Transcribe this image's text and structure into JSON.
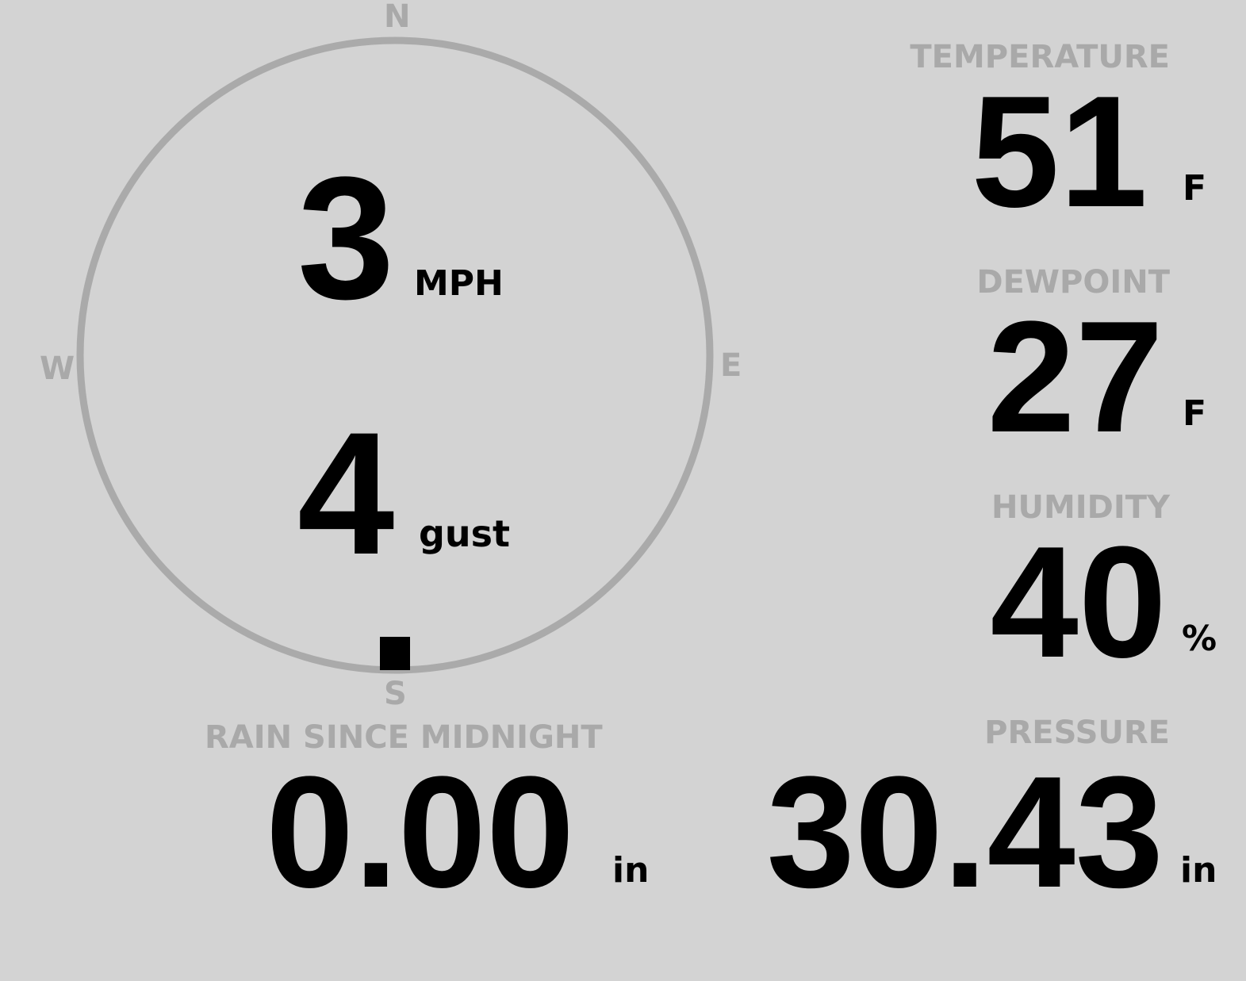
{
  "compass": {
    "north": "N",
    "south": "S",
    "east": "E",
    "west": "W",
    "wind_direction_deg": 180,
    "ring_color": "#aaaaaa"
  },
  "wind": {
    "speed": "3",
    "speed_unit": "MPH",
    "gust": "4",
    "gust_unit": "gust"
  },
  "temperature": {
    "label": "TEMPERATURE",
    "value": "51",
    "unit": "F"
  },
  "dewpoint": {
    "label": "DEWPOINT",
    "value": "27",
    "unit": "F"
  },
  "humidity": {
    "label": "HUMIDITY",
    "value": "40",
    "unit": "%"
  },
  "rain": {
    "label": "RAIN SINCE MIDNIGHT",
    "value": "0.00",
    "unit": "in"
  },
  "pressure": {
    "label": "PRESSURE",
    "value": "30.43",
    "unit": "in"
  },
  "colors": {
    "background": "#d3d3d3",
    "label": "#a9a9a9",
    "value": "#000000"
  }
}
